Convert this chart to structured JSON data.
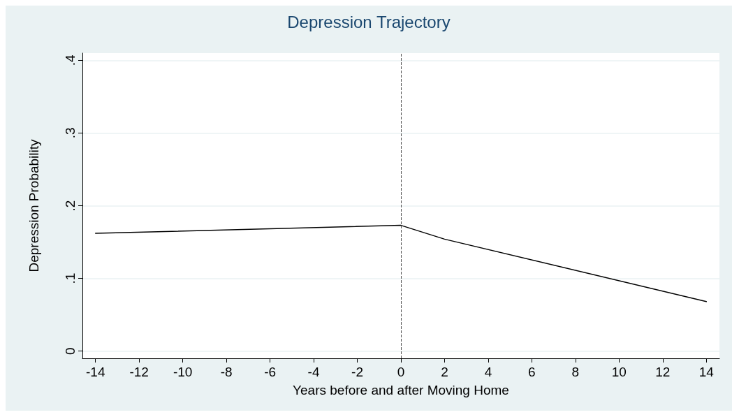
{
  "chart_data": {
    "type": "line",
    "title": "Depression Trajectory",
    "xlabel": "Years before and after Moving Home",
    "ylabel": "Depression Probability",
    "x": [
      -14,
      0,
      2,
      14
    ],
    "series": [
      {
        "color": "#000000",
        "values": [
          0.162,
          0.173,
          0.154,
          0.068
        ]
      }
    ],
    "xlim": [
      -14.6,
      14.6
    ],
    "xticks": [
      -14,
      -12,
      -10,
      -8,
      -6,
      -4,
      -2,
      0,
      2,
      4,
      6,
      8,
      10,
      12,
      14
    ],
    "ylim": [
      -0.01,
      0.41
    ],
    "yticks": [
      {
        "value": 0,
        "label": "0"
      },
      {
        "value": 0.1,
        "label": ".1"
      },
      {
        "value": 0.2,
        "label": ".2"
      },
      {
        "value": 0.3,
        "label": ".3"
      },
      {
        "value": 0.4,
        "label": ".4"
      }
    ],
    "ref_lines": [
      {
        "axis": "x",
        "value": 0,
        "color": "#555555",
        "line_style": "dashed"
      }
    ],
    "grid": "y",
    "marker": "none",
    "line_style": "solid",
    "legend": false
  }
}
